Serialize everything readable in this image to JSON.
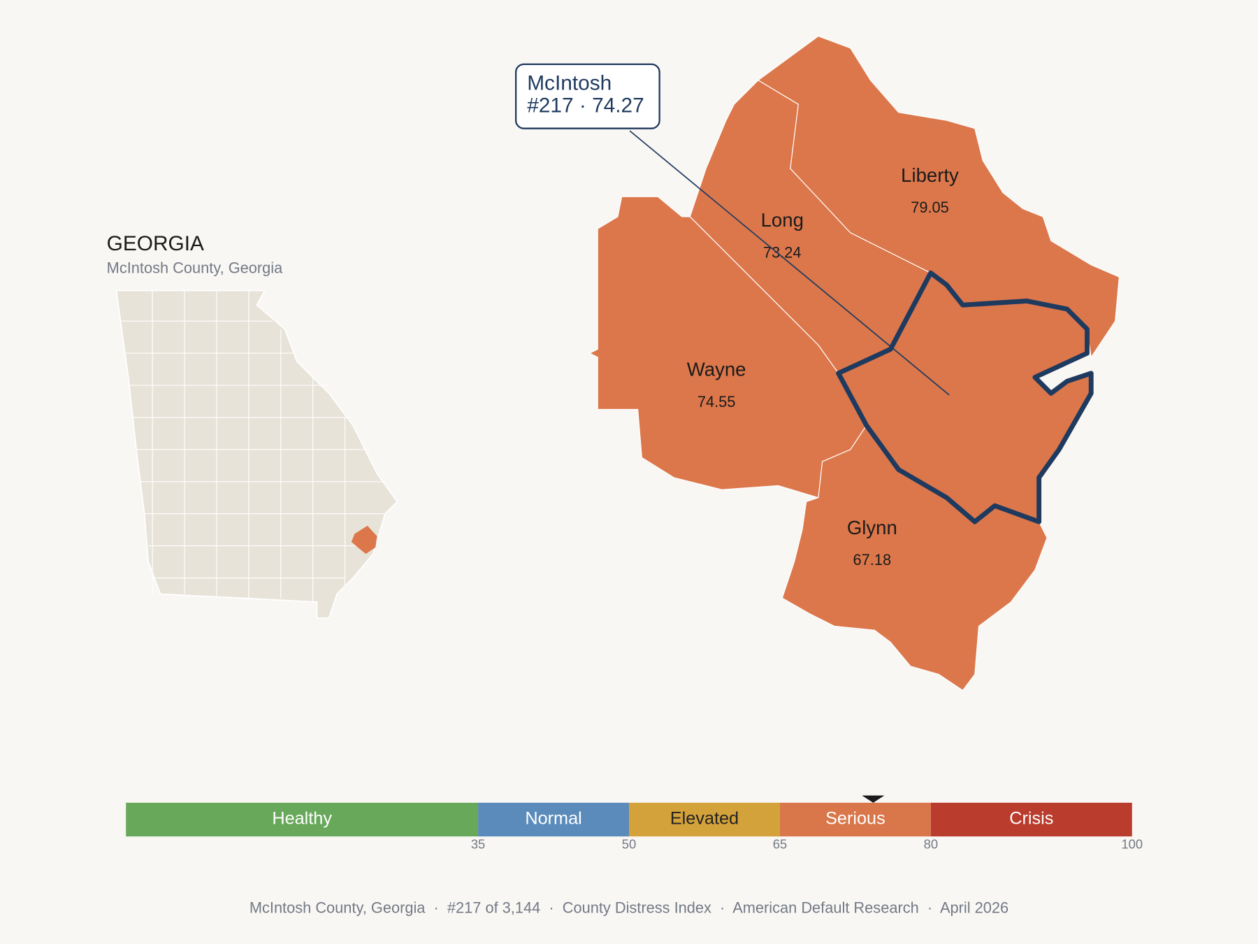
{
  "header": {
    "title": "GEORGIA",
    "subtitle": "McIntosh County, Georgia"
  },
  "counties": [
    {
      "name": "Liberty",
      "value": 79.05
    },
    {
      "name": "Long",
      "value": 73.24
    },
    {
      "name": "Wayne",
      "value": 74.55
    },
    {
      "name": "Glynn",
      "value": 67.18
    },
    {
      "name": "McIntosh",
      "value": 74.27
    }
  ],
  "callout": {
    "detail": "#217 · 74.27"
  },
  "scale": {
    "range": [
      0,
      100
    ],
    "bands": [
      {
        "label": "Healthy",
        "from": 0,
        "to": 35,
        "color": "#67a85a",
        "text_color": "#ffffff"
      },
      {
        "label": "Normal",
        "from": 35,
        "to": 50,
        "color": "#5b8bbb",
        "text_color": "#ffffff"
      },
      {
        "label": "Elevated",
        "from": 50,
        "to": 65,
        "color": "#d4a23a",
        "text_color": "#222222"
      },
      {
        "label": "Serious",
        "from": 65,
        "to": 80,
        "color": "#d9764a",
        "text_color": "#ffffff"
      },
      {
        "label": "Crisis",
        "from": 80,
        "to": 100,
        "color": "#b93c2d",
        "text_color": "#ffffff"
      }
    ],
    "ticks": [
      35,
      50,
      65,
      80,
      100
    ]
  },
  "footer": "McIntosh County, Georgia  ·  #217 of 3,144  ·  County Distress Index  ·  American Default Research  ·  April 2026"
}
